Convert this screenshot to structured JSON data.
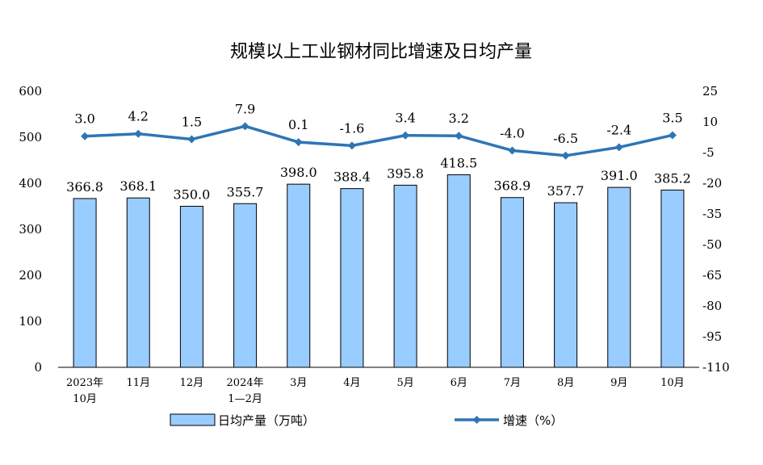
{
  "chart_data": {
    "type": "bar+line",
    "title": "规模以上工业钢材同比增速及日均产量",
    "categories": [
      [
        "2023年",
        "10月"
      ],
      [
        "11月"
      ],
      [
        "12月"
      ],
      [
        "2024年",
        "1—2月"
      ],
      [
        "3月"
      ],
      [
        "4月"
      ],
      [
        "5月"
      ],
      [
        "6月"
      ],
      [
        "7月"
      ],
      [
        "8月"
      ],
      [
        "9月"
      ],
      [
        "10月"
      ]
    ],
    "series": [
      {
        "name": "日均产量（万吨）",
        "type": "bar",
        "axis": "left",
        "color": "#99ccff",
        "values": [
          366.8,
          368.1,
          350.0,
          355.7,
          398.0,
          388.4,
          395.8,
          418.5,
          368.9,
          357.7,
          391.0,
          385.2
        ],
        "labels": [
          "366.8",
          "368.1",
          "350.0",
          "355.7",
          "398.0",
          "388.4",
          "395.8",
          "418.5",
          "368.9",
          "357.7",
          "391.0",
          "385.2"
        ]
      },
      {
        "name": "增速（%）",
        "type": "line",
        "axis": "right",
        "color": "#2e75b6",
        "values": [
          3.0,
          4.2,
          1.5,
          7.9,
          0.1,
          -1.6,
          3.4,
          3.2,
          -4.0,
          -6.5,
          -2.4,
          3.5
        ],
        "labels": [
          "3.0",
          "4.2",
          "1.5",
          "7.9",
          "0.1",
          "-1.6",
          "3.4",
          "3.2",
          "-4.0",
          "-6.5",
          "-2.4",
          "3.5"
        ]
      }
    ],
    "y_left": {
      "min": 0,
      "max": 600,
      "ticks": [
        "0",
        "100",
        "200",
        "300",
        "400",
        "500",
        "600"
      ]
    },
    "y_right": {
      "min": -110,
      "max": 25,
      "ticks": [
        "-110",
        "-95",
        "-80",
        "-65",
        "-50",
        "-35",
        "-20",
        "-5",
        "10",
        "25"
      ]
    },
    "legend_position": "bottom",
    "grid": false
  }
}
